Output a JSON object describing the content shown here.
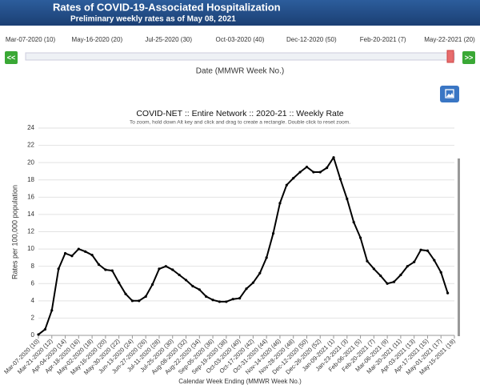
{
  "header": {
    "title": "Rates of COVID-19-Associated Hospitalization",
    "subtitle": "Preliminary weekly rates as of May 08, 2021"
  },
  "slider": {
    "labels": [
      "Mar-07-2020 (10)",
      "May-16-2020 (20)",
      "Jul-25-2020 (30)",
      "Oct-03-2020 (40)",
      "Dec-12-2020 (50)",
      "Feb-20-2021 (7)",
      "May-22-2021 (20)"
    ],
    "prev_button": "<<",
    "next_button": ">>",
    "axis_label": "Date (MMWR Week No.)"
  },
  "chart_data": {
    "type": "line",
    "title": "COVID-NET :: Entire Network :: 2020-21 :: Weekly Rate",
    "subtitle": "To zoom, hold down Alt key and click and drag to create a rectangle. Double click to reset zoom.",
    "y_label": "Rates per 100,000 population",
    "x_label": "Calendar Week Ending (MMWR Week No.)",
    "categories": [
      "Mar-07-2020 (10)",
      null,
      "Mar-21-2020 (12)",
      null,
      "Apr-04-2020 (14)",
      null,
      "Apr-18-2020 (16)",
      null,
      "May-02-2020 (18)",
      null,
      "May-16-2020 (20)",
      null,
      "May-30-2020 (22)",
      null,
      "Jun-13-2020 (24)",
      null,
      "Jun-27-2020 (26)",
      null,
      "Jul-11-2020 (28)",
      null,
      "Jul-25-2020 (30)",
      null,
      "Aug-08-2020 (32)",
      null,
      "Aug-22-2020 (34)",
      null,
      "Sep-05-2020 (36)",
      null,
      "Sep-19-2020 (38)",
      null,
      "Oct-03-2020 (40)",
      null,
      "Oct-17-2020 (42)",
      null,
      "Oct-31-2020 (44)",
      null,
      "Nov-14-2020 (46)",
      null,
      "Nov-28-2020 (48)",
      null,
      "Dec-12-2020 (50)",
      null,
      "Dec-26-2020 (52)",
      null,
      "Jan-09-2021 (1)",
      null,
      "Jan-23-2021 (3)",
      null,
      "Feb-06-2021 (5)",
      null,
      "Feb-20-2021 (7)",
      null,
      "Mar-06-2021 (9)",
      null,
      "Mar-20-2021 (11)",
      null,
      "Apr-03-2021 (13)",
      null,
      "Apr-17-2021 (15)",
      null,
      "May-01-2021 (17)",
      null,
      "May-15-2021 (19)"
    ],
    "values": [
      0.1,
      0.7,
      2.9,
      7.7,
      9.5,
      9.2,
      10.0,
      9.7,
      9.3,
      8.2,
      7.6,
      7.5,
      6.1,
      4.8,
      4.0,
      4.0,
      4.5,
      5.9,
      7.7,
      8.0,
      7.6,
      7.0,
      6.4,
      5.7,
      5.3,
      4.5,
      4.1,
      3.9,
      3.9,
      4.2,
      4.3,
      5.4,
      6.1,
      7.2,
      9.0,
      11.8,
      15.3,
      17.4,
      18.2,
      18.9,
      19.5,
      18.9,
      18.9,
      19.4,
      20.6,
      18.1,
      15.8,
      13.1,
      11.3,
      8.6,
      7.7,
      6.9,
      6.0,
      6.2,
      7.0,
      8.0,
      8.5,
      9.9,
      9.8,
      8.7,
      7.3,
      4.9,
      null
    ],
    "color": "#000000",
    "ylim": [
      0,
      24
    ],
    "yticks": [
      0,
      2,
      4,
      6,
      8,
      10,
      12,
      14,
      16,
      18,
      20,
      22,
      24
    ],
    "grid": true
  }
}
